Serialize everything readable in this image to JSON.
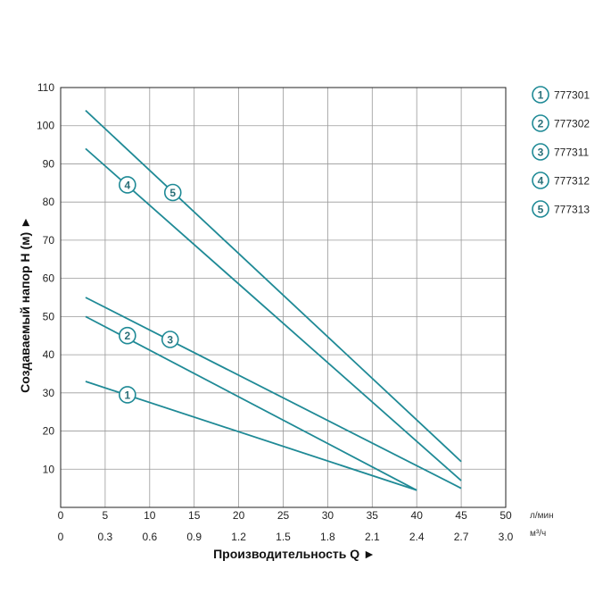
{
  "chart_data": {
    "type": "line",
    "ylabel": "Создаваемый напор H (м) ►",
    "xlabel": "Производительность Q ►",
    "x_unit_primary": "л/мин",
    "x_unit_secondary": "м³/ч",
    "xlim": [
      0,
      50
    ],
    "ylim": [
      0,
      110
    ],
    "x_ticks": [
      0,
      5,
      10,
      15,
      20,
      25,
      30,
      35,
      40,
      45,
      50
    ],
    "x_tick_labels": [
      "0",
      "5",
      "10",
      "15",
      "20",
      "25",
      "30",
      "35",
      "40",
      "45",
      "50"
    ],
    "x2_tick_labels": [
      "0",
      "0.3",
      "0.6",
      "0.9",
      "1.2",
      "1.5",
      "1.8",
      "2.1",
      "2.4",
      "2.7",
      "3.0"
    ],
    "y_ticks": [
      10,
      20,
      30,
      40,
      50,
      60,
      70,
      80,
      90,
      100,
      110
    ],
    "y_tick_labels": [
      "10",
      "20",
      "30",
      "40",
      "50",
      "60",
      "70",
      "80",
      "90",
      "100",
      "110"
    ],
    "grid": true,
    "legend_position": "top-right",
    "line_color": "#1f8a96",
    "series": [
      {
        "name": "777301",
        "marker": "1",
        "x": [
          2.8,
          40
        ],
        "y": [
          33,
          4.5
        ],
        "marker_at": [
          7.5,
          29.5
        ]
      },
      {
        "name": "777302",
        "marker": "2",
        "x": [
          2.8,
          40
        ],
        "y": [
          50,
          4.5
        ],
        "marker_at": [
          7.5,
          45
        ]
      },
      {
        "name": "777311",
        "marker": "3",
        "x": [
          2.8,
          45
        ],
        "y": [
          55,
          5
        ],
        "marker_at": [
          12.3,
          44
        ]
      },
      {
        "name": "777312",
        "marker": "4",
        "x": [
          2.8,
          45
        ],
        "y": [
          94,
          7
        ],
        "marker_at": [
          7.5,
          84.5
        ]
      },
      {
        "name": "777313",
        "marker": "5",
        "x": [
          2.8,
          45
        ],
        "y": [
          104,
          12
        ],
        "marker_at": [
          12.6,
          82.5
        ]
      }
    ]
  }
}
